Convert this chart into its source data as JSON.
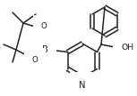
{
  "bg_color": "#ffffff",
  "line_color": "#222222",
  "lw": 1.1,
  "font_size": 6.2,
  "fig_width": 1.53,
  "fig_height": 1.08,
  "dpi": 100,
  "xlim": [
    0,
    153
  ],
  "ylim": [
    0,
    108
  ]
}
